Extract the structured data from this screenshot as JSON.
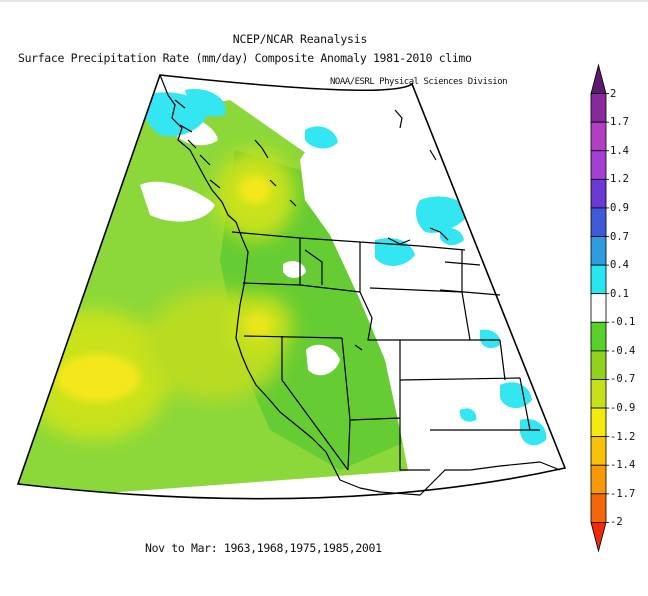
{
  "title": {
    "line1": "NCEP/NCAR Reanalysis",
    "line2": "Surface Precipitation Rate (mm/day) Composite Anomaly 1981-2010 climo"
  },
  "credit": "NOAA/ESRL Physical Sciences Division",
  "footer": "Nov to Mar: 1963,1968,1975,1985,2001",
  "colorbar": {
    "labels": [
      "2",
      "1.7",
      "1.4",
      "1.2",
      "0.9",
      "0.7",
      "0.4",
      "0.1",
      "-0.1",
      "-0.4",
      "-0.7",
      "-0.9",
      "-1.2",
      "-1.4",
      "-1.7",
      "-2"
    ],
    "colors": [
      "#5a1a6e",
      "#862a9a",
      "#b23fc2",
      "#a43fd6",
      "#6a3ad2",
      "#3e5ad8",
      "#2e9cdf",
      "#28e6ee",
      "#ffffff",
      "#58d22a",
      "#92d21e",
      "#c6e01c",
      "#f4ea0e",
      "#f8c20a",
      "#f89a08",
      "#f4660a",
      "#ee2a0a"
    ]
  },
  "colors": {
    "light_green": "#8cd83a",
    "green": "#66cc33",
    "yellow_green": "#c8e21a",
    "yellow": "#f4e81a",
    "cyan": "#33e6f2",
    "land_white": "#ffffff",
    "boundaries": "#000000"
  }
}
